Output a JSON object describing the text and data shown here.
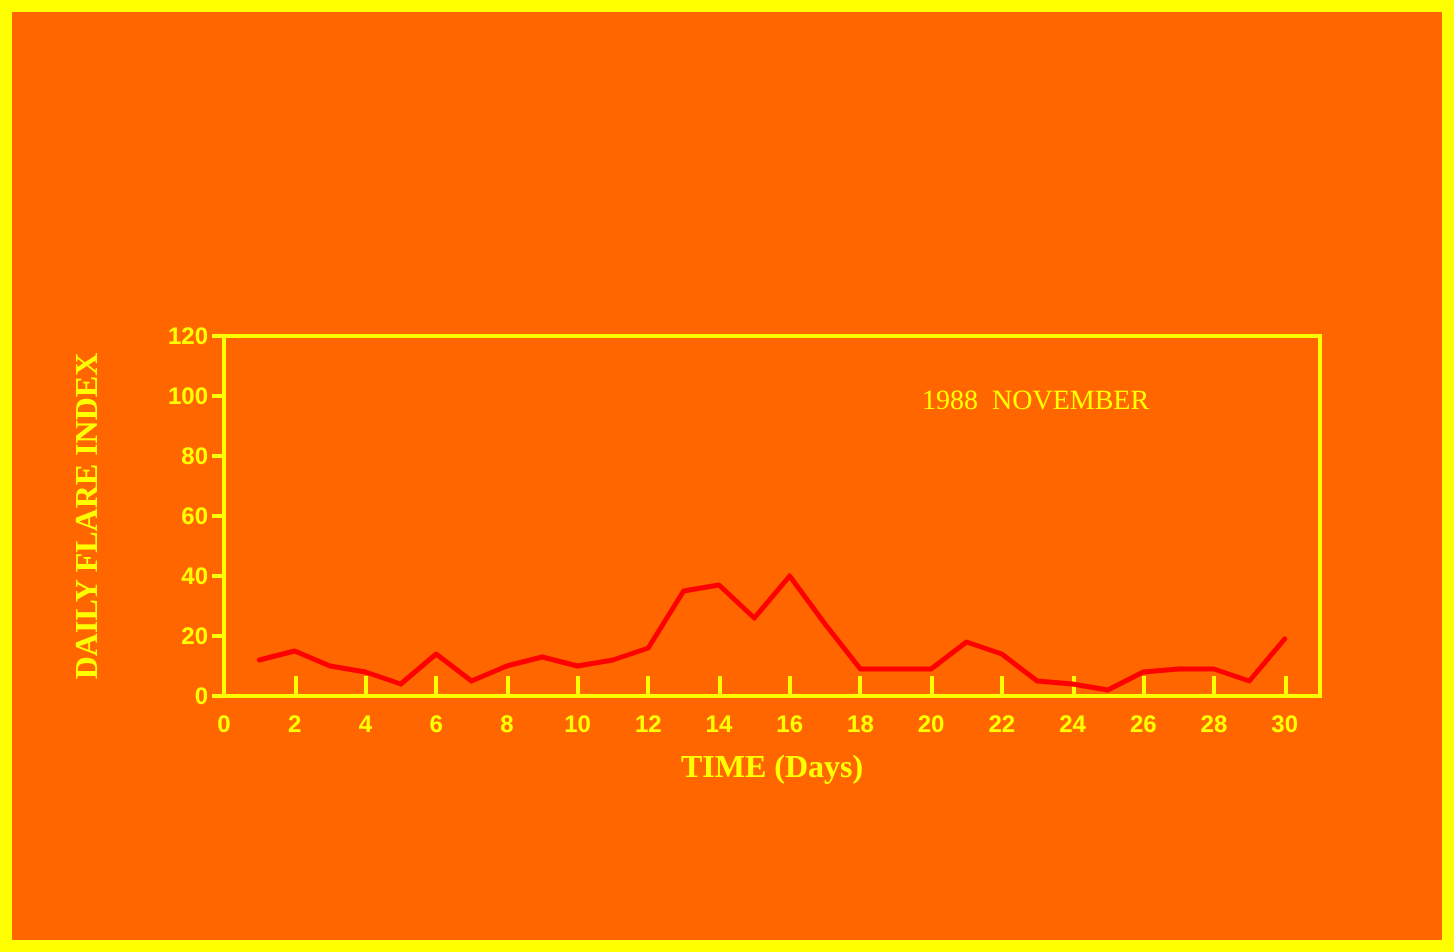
{
  "chart_data": {
    "type": "line",
    "xlabel": "TIME (Days)",
    "ylabel": "DAILY FLARE INDEX",
    "annotations": [
      "1988  NOVEMBER"
    ],
    "x": [
      1,
      2,
      3,
      4,
      5,
      6,
      7,
      8,
      9,
      10,
      11,
      12,
      13,
      14,
      15,
      16,
      17,
      18,
      19,
      20,
      21,
      22,
      23,
      24,
      25,
      26,
      27,
      28,
      29,
      30
    ],
    "series": [
      {
        "color": "#ff0000",
        "values": [
          12,
          15,
          10,
          8,
          4,
          14,
          5,
          10,
          13,
          10,
          12,
          16,
          35,
          37,
          26,
          40,
          24,
          9,
          9,
          9,
          18,
          14,
          5,
          4,
          2,
          8,
          9,
          9,
          5,
          19
        ]
      }
    ],
    "xlim": [
      0,
      31
    ],
    "xticks": [
      0,
      2,
      4,
      6,
      8,
      10,
      12,
      14,
      16,
      18,
      20,
      22,
      24,
      26,
      28,
      30
    ],
    "ylim": [
      0,
      120
    ],
    "yticks": [
      0,
      20,
      40,
      60,
      80,
      100,
      120
    ],
    "marker": "none",
    "line_style": "solid"
  }
}
